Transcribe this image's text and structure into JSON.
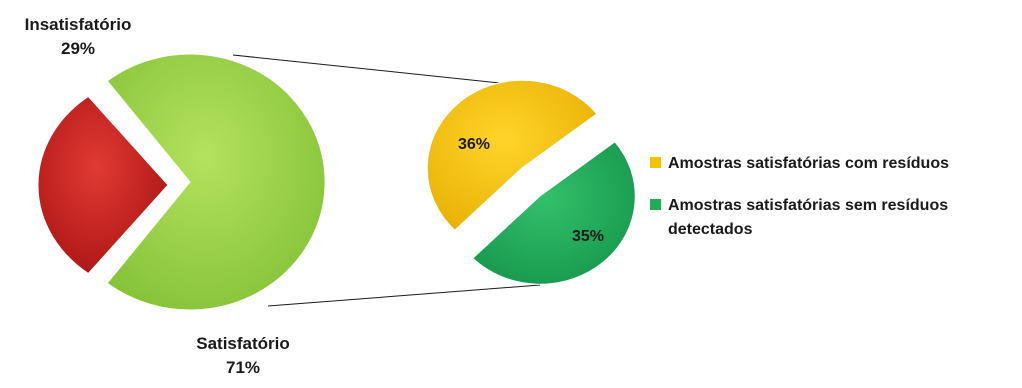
{
  "chart_data": {
    "type": "bar-of-pie",
    "main_pie": {
      "slices": [
        {
          "label": "Insatisfatório",
          "value_label": "29%",
          "value": 29,
          "color": "#cc1f1f",
          "exploded": true
        },
        {
          "label": "Satisfatório",
          "value_label": "71%",
          "value": 71,
          "color": "#9ad34a",
          "exploded": false
        }
      ]
    },
    "secondary_pie": {
      "slices": [
        {
          "label": "Amostras satisfatórias com resíduos",
          "value_label": "36%",
          "value": 36,
          "color": "#f5c400"
        },
        {
          "label": "Amostras satisfatórias sem resíduos detectados",
          "value_label": "35%",
          "value": 35,
          "color": "#1fae58"
        }
      ]
    },
    "legend": {
      "placement": "right",
      "entries": [
        {
          "lines": [
            "Amostras satisfatórias com resíduos"
          ],
          "color": "#f5c400"
        },
        {
          "lines": [
            "Amostras satisfatórias sem resíduos",
            "detectados"
          ],
          "color": "#1fae58"
        }
      ]
    }
  }
}
